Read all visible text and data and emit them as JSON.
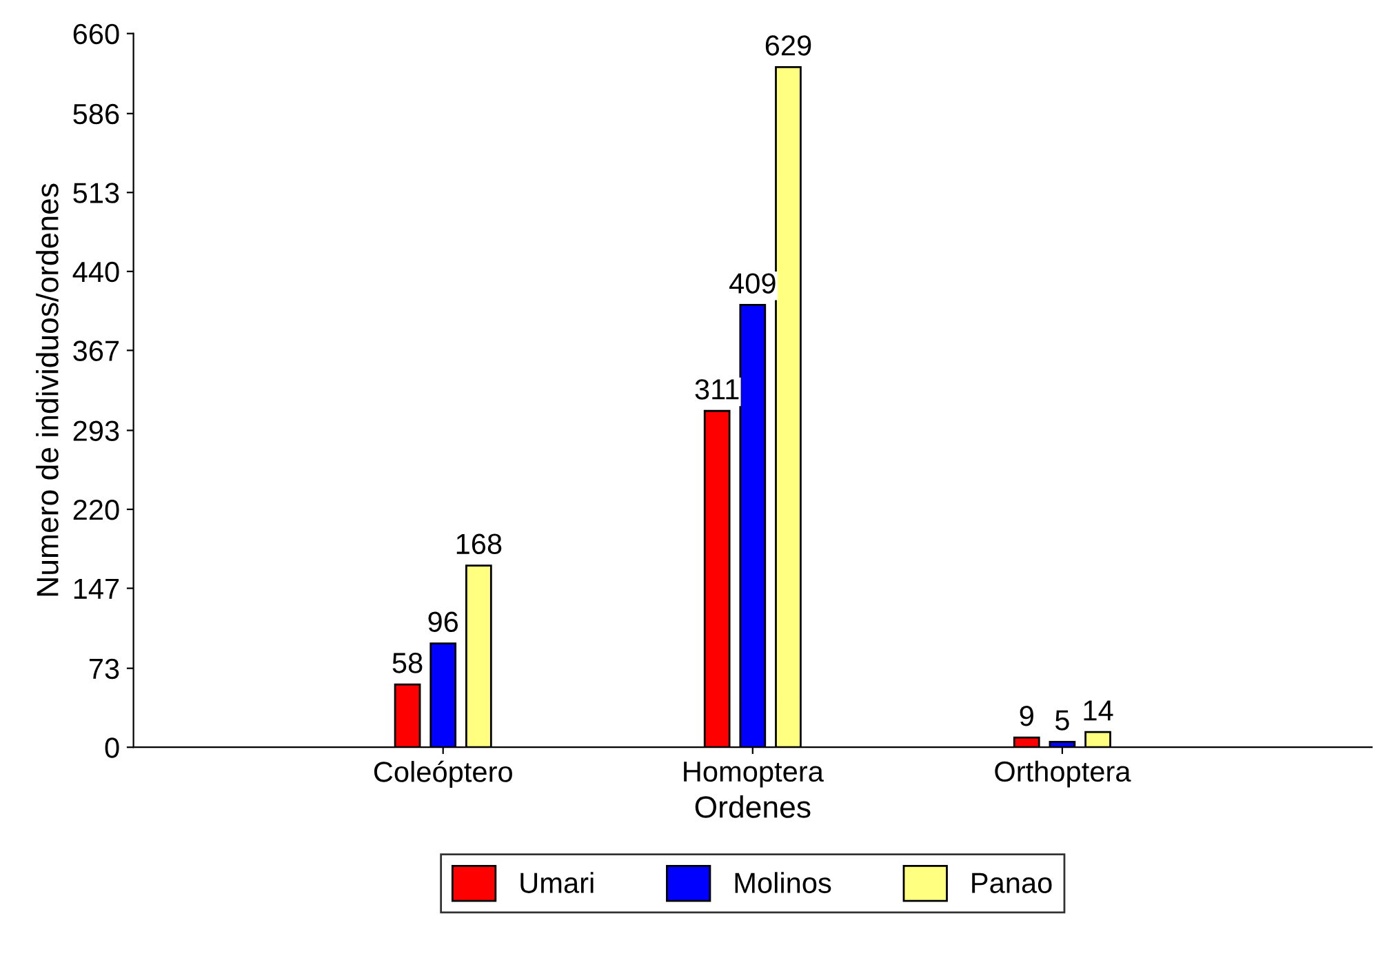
{
  "chart_data": {
    "type": "bar",
    "xlabel": "Ordenes",
    "ylabel": "Numero de individuos/ordenes",
    "categories": [
      "Coleóptero",
      "Homoptera",
      "Orthoptera"
    ],
    "series": [
      {
        "name": "Umari",
        "color": "#ff0000",
        "values": [
          58,
          311,
          9
        ]
      },
      {
        "name": "Molinos",
        "color": "#0000ff",
        "values": [
          96,
          409,
          5
        ]
      },
      {
        "name": "Panao",
        "color": "#ffff80",
        "values": [
          168,
          629,
          14
        ]
      }
    ],
    "ylim": [
      0,
      660
    ],
    "yticks": [
      0,
      73,
      147,
      220,
      293,
      367,
      440,
      513,
      586,
      660
    ],
    "data_labels": true,
    "grid": false,
    "legend": "bottom"
  }
}
